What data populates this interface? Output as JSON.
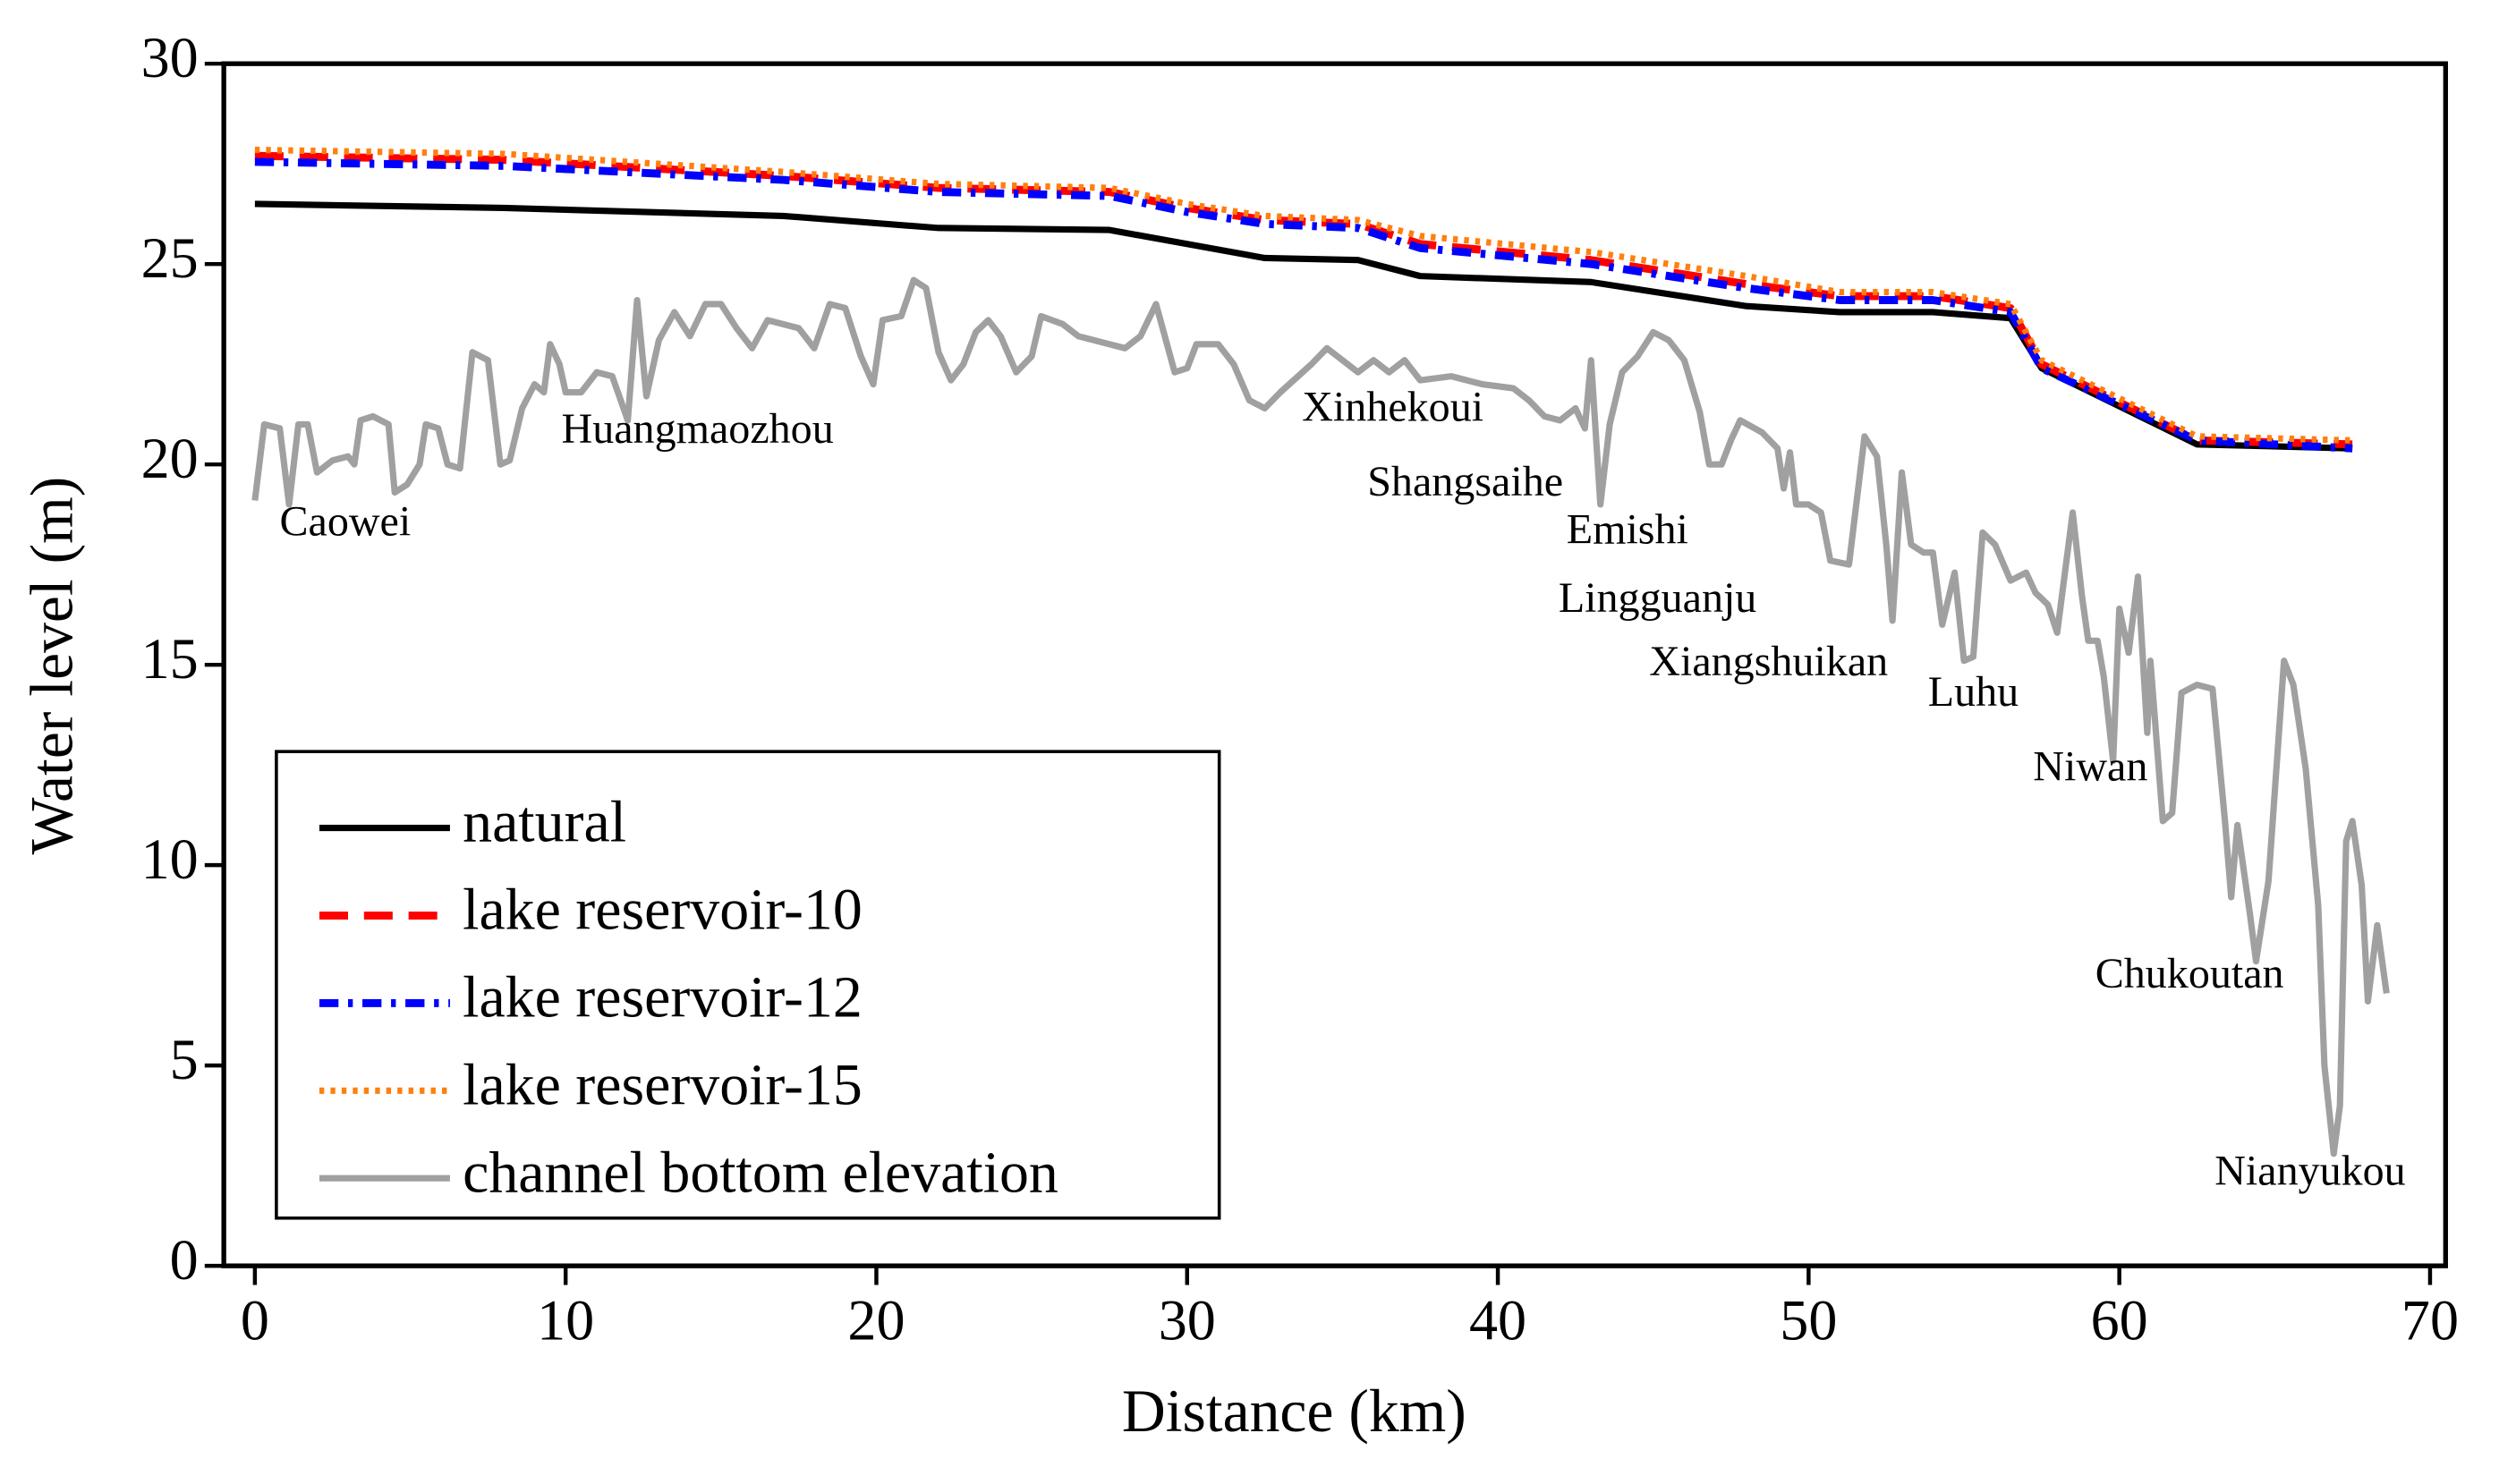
{
  "chart_data": {
    "type": "line",
    "x_label": "Distance (km)",
    "y_label": "Water level (m)",
    "xlim": [
      -1,
      70.5
    ],
    "ylim": [
      0,
      30
    ],
    "xticks": [
      0,
      10,
      20,
      30,
      40,
      50,
      60,
      70
    ],
    "yticks": [
      0,
      5,
      10,
      15,
      20,
      25,
      30
    ],
    "legend": "lower left",
    "x": [
      0,
      8,
      17,
      22,
      27.5,
      30,
      32.5,
      35.5,
      37.5,
      43,
      48,
      51,
      54,
      56.5,
      57.5,
      62.5,
      67.5
    ],
    "series": [
      {
        "name": "natural",
        "color": "#000000",
        "linestyle": "solid",
        "values": [
          26.5,
          26.4,
          26.2,
          25.9,
          25.85,
          25.5,
          25.15,
          25.1,
          24.7,
          24.55,
          23.95,
          23.8,
          23.8,
          23.65,
          22.4,
          20.5,
          20.4
        ]
      },
      {
        "name": "lake reservoir-10",
        "color": "#ff0000",
        "linestyle": "dashed",
        "values": [
          27.7,
          27.6,
          27.2,
          26.9,
          26.8,
          26.4,
          26.1,
          26.0,
          25.5,
          25.1,
          24.5,
          24.2,
          24.2,
          23.9,
          22.5,
          20.6,
          20.5
        ]
      },
      {
        "name": "lake reservoir-12",
        "color": "#0000ff",
        "linestyle": "dashdot",
        "values": [
          27.55,
          27.45,
          27.1,
          26.8,
          26.7,
          26.3,
          26.0,
          25.9,
          25.4,
          25.0,
          24.4,
          24.1,
          24.1,
          23.8,
          22.4,
          20.6,
          20.4
        ]
      },
      {
        "name": "lake reservoir-15",
        "color": "#ff7f0e",
        "linestyle": "dotted",
        "values": [
          27.85,
          27.75,
          27.3,
          27.0,
          26.9,
          26.5,
          26.2,
          26.1,
          25.7,
          25.3,
          24.7,
          24.3,
          24.3,
          24.0,
          22.6,
          20.7,
          20.6
        ]
      },
      {
        "name": "channel bottom elevation",
        "color": "#a0a0a0",
        "linestyle": "solid",
        "x": [
          0,
          0.3,
          0.8,
          1.1,
          1.4,
          1.7,
          2,
          2.5,
          3,
          3.2,
          3.4,
          3.8,
          4.3,
          4.5,
          4.9,
          5.3,
          5.5,
          5.9,
          6.2,
          6.6,
          7,
          7.5,
          7.9,
          8.2,
          8.6,
          9,
          9.3,
          9.5,
          9.8,
          10,
          10.5,
          11,
          11.5,
          12,
          12.3,
          12.6,
          13,
          13.5,
          14,
          14.5,
          15,
          15.5,
          16,
          16.5,
          17.5,
          18,
          18.5,
          19,
          19.5,
          19.9,
          20.2,
          20.8,
          21.2,
          21.6,
          22,
          22.4,
          22.8,
          23.2,
          23.6,
          24,
          24.5,
          25,
          25.3,
          26,
          26.5,
          27.5,
          28,
          28.5,
          29,
          29.6,
          30,
          30.3,
          31,
          31.5,
          32,
          32.5,
          33,
          34,
          34.5,
          35,
          35.5,
          36,
          36.5,
          37,
          37.5,
          38.5,
          39.5,
          40.5,
          41,
          41.5,
          42,
          42.5,
          42.8,
          43,
          43.3,
          43.6,
          44,
          44.5,
          45,
          45.5,
          46,
          46.5,
          46.8,
          47.2,
          47.5,
          47.8,
          48.5,
          49,
          49.2,
          49.4,
          49.6,
          50,
          50.4,
          50.7,
          51.3,
          51.8,
          52.2,
          52.5,
          52.7,
          53,
          53.3,
          53.7,
          54,
          54.3,
          54.7,
          55,
          55.3,
          55.6,
          56,
          56.5,
          57,
          57.3,
          57.7,
          58,
          58.5,
          58.8,
          59,
          59.3,
          59.5,
          59.8,
          60,
          60.3,
          60.6,
          60.9,
          61,
          61.4,
          61.7,
          62,
          62.5,
          63,
          63.4,
          63.6,
          63.8,
          64.2,
          64.4,
          64.8,
          65.3,
          65.6,
          66,
          66.4,
          66.6,
          66.9,
          67.1,
          67.3,
          67.5,
          67.8,
          68,
          68.3,
          68.6
        ],
        "values": [
          19.1,
          21,
          20.9,
          19.0,
          21,
          21,
          19.8,
          20.1,
          20.2,
          20,
          21.1,
          21.2,
          21,
          19.3,
          19.5,
          20,
          21,
          20.9,
          20,
          19.9,
          22.8,
          22.6,
          20,
          20.1,
          21.4,
          22,
          21.8,
          23,
          22.5,
          21.8,
          21.8,
          22.3,
          22.2,
          21.1,
          24.1,
          21.7,
          23.1,
          23.8,
          23.2,
          24,
          24,
          23.4,
          22.9,
          23.6,
          23.4,
          22.9,
          24,
          23.9,
          22.7,
          22,
          23.6,
          23.7,
          24.6,
          24.4,
          22.8,
          22.1,
          22.5,
          23.3,
          23.6,
          23.2,
          22.3,
          22.7,
          23.7,
          23.5,
          23.2,
          23,
          22.9,
          23.2,
          24,
          22.3,
          22.4,
          23,
          23,
          22.5,
          21.6,
          21.4,
          21.8,
          22.5,
          22.9,
          22.6,
          22.3,
          22.6,
          22.3,
          22.6,
          22.1,
          22.2,
          22,
          21.9,
          21.6,
          21.2,
          21.1,
          21.4,
          20.9,
          22.6,
          19,
          21,
          22.3,
          22.7,
          23.3,
          23.1,
          22.6,
          21.3,
          20,
          20,
          20.6,
          21.1,
          20.8,
          20.4,
          19.4,
          20.3,
          19,
          19,
          18.8,
          17.6,
          17.5,
          20.7,
          20.2,
          18,
          16.1,
          19.8,
          18,
          17.8,
          17.8,
          16,
          17.3,
          15.1,
          15.2,
          18.3,
          18,
          17.1,
          17.3,
          16.8,
          16.5,
          15.8,
          18.8,
          16.7,
          15.6,
          15.6,
          14.7,
          12.6,
          16.4,
          15.3,
          17.2,
          13.3,
          15.1,
          11.1,
          11.3,
          14.3,
          14.5,
          14.4,
          11.1,
          9.2,
          11,
          8.8,
          7.6,
          9.6,
          15.1,
          14.5,
          12.4,
          9,
          5,
          2.8,
          4,
          10.6,
          11.1,
          9.5,
          6.6,
          8.5,
          6.8
        ]
      }
    ],
    "annotations": [
      "Caowei",
      "Huangmaozhou",
      "Xinhekoui",
      "Shangsaihe",
      "Emishi",
      "Lingguanju",
      "Xiangshuikan",
      "Luhu",
      "Niwan",
      "Chukoutan",
      "Nianyukou"
    ]
  }
}
